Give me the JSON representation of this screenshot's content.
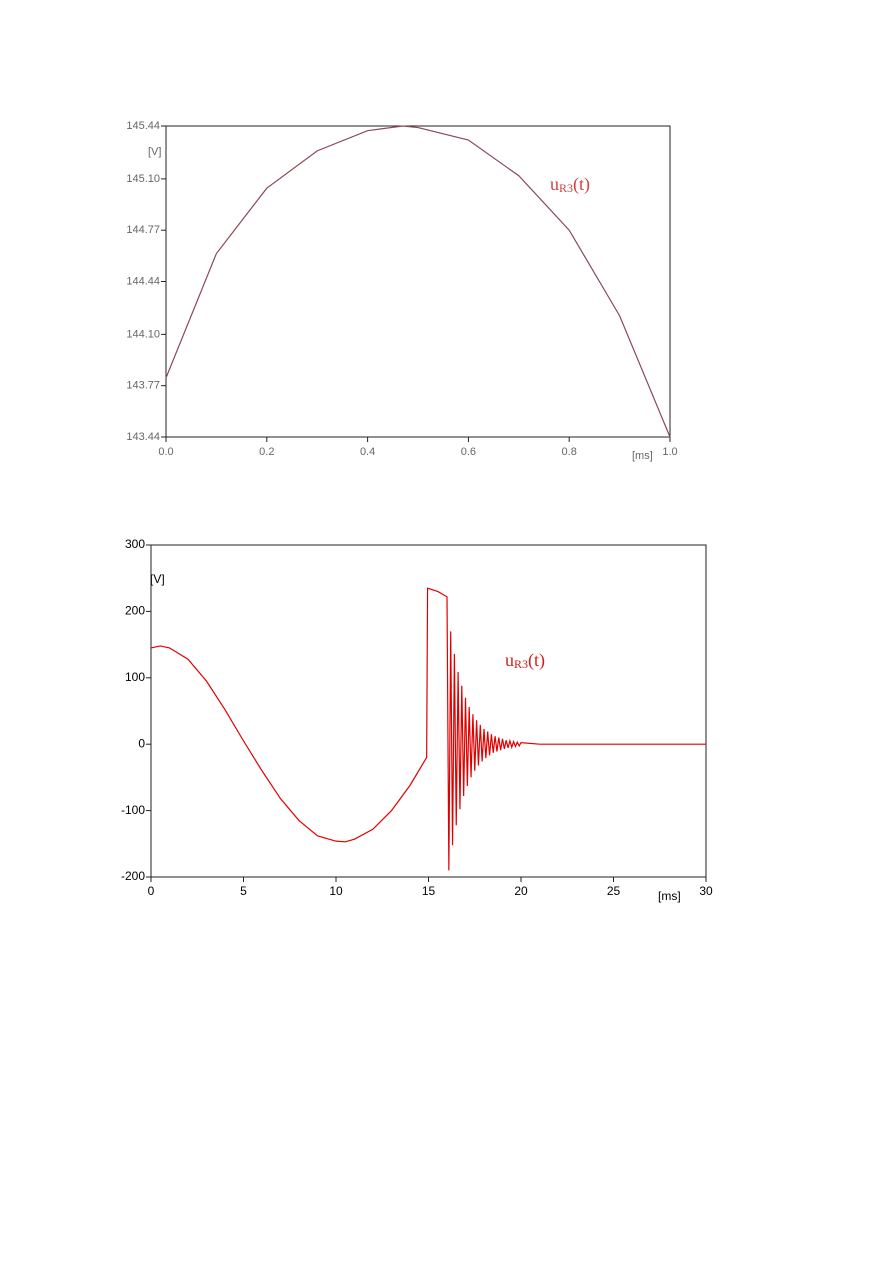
{
  "chart_data": [
    {
      "type": "line",
      "color": "#8a4a55",
      "x_unit": "[ms]",
      "y_unit": "[V]",
      "annotation": {
        "main": "u",
        "sub": "R3",
        "tail": "(t)"
      },
      "annotation_color": "#d04040",
      "x": [
        0,
        0.1,
        0.2,
        0.3,
        0.4,
        0.47,
        0.5,
        0.6,
        0.7,
        0.8,
        0.9,
        1.0
      ],
      "values": [
        143.82,
        144.62,
        145.04,
        145.28,
        145.41,
        145.44,
        145.43,
        145.35,
        145.12,
        144.77,
        144.22,
        143.44
      ],
      "xlim": [
        0,
        1
      ],
      "ylim": [
        143.44,
        145.44
      ],
      "xticks": [
        {
          "value": 0,
          "label": "0.0"
        },
        0.2,
        0.4,
        0.6,
        0.8,
        {
          "value": 1,
          "label": "1.0"
        }
      ],
      "yticks": [
        143.44,
        143.77,
        {
          "value": 144.1,
          "label": "144.10"
        },
        144.44,
        144.77,
        {
          "value": 145.1,
          "label": "145.10"
        },
        145.44
      ]
    },
    {
      "type": "line",
      "color": "#e00000",
      "x_unit": "[ms]",
      "y_unit": "[V]",
      "annotation": {
        "main": "u",
        "sub": "R3",
        "tail": "(t)"
      },
      "annotation_color": "#d02020",
      "x": [
        0,
        0.5,
        1,
        2,
        3,
        4,
        5,
        6,
        7,
        8,
        9,
        10,
        10.5,
        11,
        12,
        13,
        14,
        14.9,
        14.95,
        15.5,
        16,
        16.1,
        16.2,
        16.3,
        16.4,
        16.5,
        16.6,
        16.7,
        16.8,
        16.9,
        17.0,
        17.1,
        17.2,
        17.3,
        17.4,
        17.5,
        17.6,
        17.7,
        17.8,
        17.9,
        18.0,
        18.1,
        18.2,
        18.3,
        18.4,
        18.5,
        18.6,
        18.7,
        18.8,
        18.9,
        19.0,
        19.1,
        19.2,
        19.3,
        19.4,
        19.5,
        19.6,
        19.7,
        19.8,
        19.9,
        20.0,
        21,
        30
      ],
      "values": [
        145,
        148,
        145,
        128,
        95,
        52,
        5,
        -40,
        -82,
        -115,
        -138,
        -146,
        -147,
        -143,
        -128,
        -100,
        -62,
        -20,
        235,
        230,
        222,
        -190,
        170,
        -152,
        136,
        -122,
        109,
        -98,
        88,
        -78,
        70,
        -63,
        56,
        -50,
        45,
        -40,
        36,
        -32,
        29,
        -26,
        23,
        -21,
        19,
        -17,
        15,
        -13,
        12,
        -11,
        10,
        -9,
        8,
        -7,
        6,
        -5.5,
        5,
        -4.5,
        4,
        -3.5,
        3,
        -2.7,
        2.4,
        0,
        0
      ],
      "xlim": [
        0,
        30
      ],
      "ylim": [
        -200,
        300
      ],
      "xticks": [
        0,
        5,
        10,
        15,
        20,
        25,
        30
      ],
      "yticks": [
        -200,
        -100,
        0,
        100,
        200,
        300
      ]
    }
  ]
}
